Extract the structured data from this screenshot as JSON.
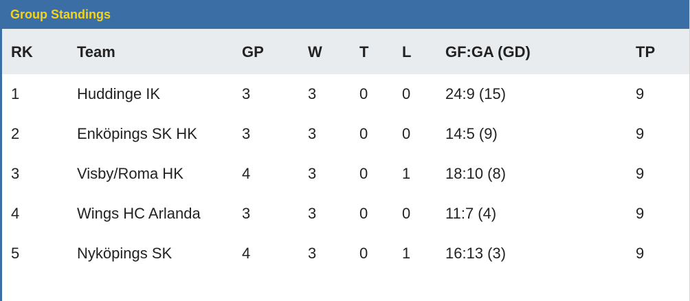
{
  "header": {
    "title": "Group Standings"
  },
  "table": {
    "columns": [
      "RK",
      "Team",
      "GP",
      "W",
      "T",
      "L",
      "GF:GA (GD)",
      "TP"
    ],
    "rows": [
      [
        1,
        "Huddinge IK",
        3,
        3,
        0,
        0,
        "24:9 (15)",
        9
      ],
      [
        2,
        "Enköpings SK HK",
        3,
        3,
        0,
        0,
        "14:5 (9)",
        9
      ],
      [
        3,
        "Visby/Roma HK",
        4,
        3,
        0,
        1,
        "18:10 (8)",
        9
      ],
      [
        4,
        "Wings HC Arlanda",
        3,
        3,
        0,
        0,
        "11:7 (4)",
        9
      ],
      [
        5,
        "Nyköpings SK",
        4,
        3,
        0,
        1,
        "16:13 (3)",
        9
      ]
    ]
  }
}
